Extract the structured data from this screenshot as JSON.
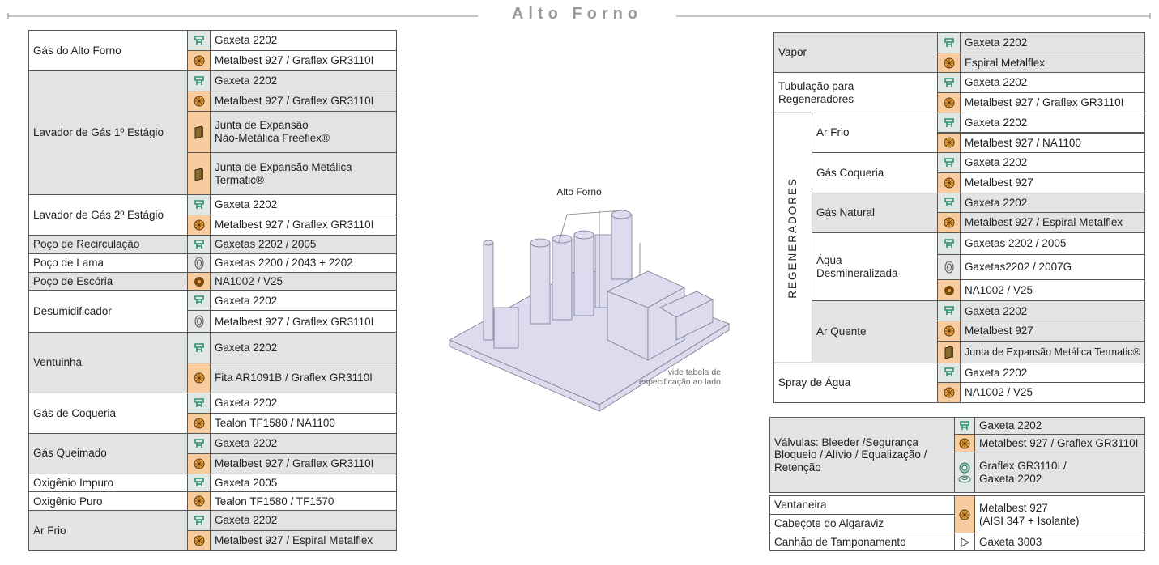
{
  "header": {
    "title": "Alto Forno"
  },
  "illustration": {
    "label": "Alto Forno",
    "caption": "vide tabela de\nespecificação ao lado"
  },
  "left_table": {
    "groups": [
      {
        "label": "Gás do Alto Forno",
        "items": [
          "Gaxeta 2202",
          "Metalbest 927 / Graflex GR3110I"
        ]
      },
      {
        "label": "Lavador de Gás 1º Estágio",
        "items": [
          "Gaxeta 2202",
          "Metalbest 927 / Graflex GR3110I",
          "Junta de Expansão\nNão-Metálica Freeflex®",
          "Junta de Expansão Metálica\nTermatic®"
        ]
      },
      {
        "label": "Lavador de Gás 2º Estágio",
        "items": [
          "Gaxeta 2202",
          "Metalbest 927 / Graflex GR3110I"
        ]
      },
      {
        "label": "Poço de Recirculação",
        "items": [
          "Gaxetas 2202 / 2005"
        ]
      },
      {
        "label": "Poço de Lama",
        "items": [
          "Gaxetas 2200 / 2043 + 2202"
        ]
      },
      {
        "label": "Poço de Escória",
        "items": [
          "NA1002 / V25"
        ]
      },
      {
        "label": "Desumidificador",
        "items": [
          "Gaxeta 2202",
          "Metalbest 927 / Graflex GR3110I"
        ]
      },
      {
        "label": "Ventuinha",
        "items": [
          "Gaxeta 2202",
          "Fita AR1091B / Graflex GR3110I"
        ]
      },
      {
        "label": "Gás de Coqueria",
        "items": [
          "Gaxeta 2202",
          "Tealon TF1580 / NA1100"
        ]
      },
      {
        "label": "Gás Queimado",
        "items": [
          "Gaxeta 2202",
          "Metalbest 927 / Graflex GR3110I"
        ]
      },
      {
        "label": "Oxigênio Impuro",
        "items": [
          "Gaxeta 2005"
        ]
      },
      {
        "label": "Oxigênio Puro",
        "items": [
          "Tealon TF1580 / TF1570"
        ]
      },
      {
        "label": "Ar Frio",
        "items": [
          "Gaxeta 2202",
          "Metalbest 927 / Espiral Metalflex"
        ]
      }
    ]
  },
  "right_table": {
    "groups": [
      {
        "label": "Vapor",
        "items": [
          "Gaxeta 2202",
          "Espiral Metalflex"
        ]
      },
      {
        "label": "Tubulação para\nRegeneradores",
        "items": [
          "Gaxeta 2202",
          "Metalbest 927 / Graflex GR3110I"
        ]
      },
      {
        "label": "REGENERADORES",
        "subgroups": [
          {
            "label": "Ar Frio",
            "items": [
              "Gaxeta 2202",
              "Metalbest 927 / NA1100"
            ]
          },
          {
            "label": "Gás Coqueria",
            "items": [
              "Gaxeta 2202",
              "Metalbest 927"
            ]
          },
          {
            "label": "Gás Natural",
            "items": [
              "Gaxeta 2202",
              "Metalbest 927 / Espiral Metalflex"
            ]
          },
          {
            "label": "Água\nDesmineralizada",
            "items": [
              "Gaxetas 2202 / 2005",
              "Gaxetas2202 / 2007G",
              "NA1002 / V25"
            ]
          },
          {
            "label": "Ar Quente",
            "items": [
              "Gaxeta 2202",
              "Metalbest 927",
              "Junta de Expansão Metálica Termatic®"
            ]
          }
        ]
      },
      {
        "label": "Spray de Água",
        "items": [
          "Gaxeta 2202",
          "NA1002 / V25"
        ]
      }
    ]
  },
  "valves_table": {
    "rows": [
      {
        "label": "Válvulas: Bleeder /Segurança\nBloqueio / Alívio / Equalização /\nRetenção",
        "items": [
          "Gaxeta 2202",
          "Metalbest 927 / Graflex GR3110I",
          "Graflex GR3110I /\nGaxeta 2202"
        ]
      },
      {
        "labels": [
          "Ventaneira",
          "Cabeçote do Algaraviz"
        ],
        "items": [
          "Metalbest 927\n(AISI 347 + Isolante)"
        ]
      },
      {
        "label": "Canhão de Tamponamento",
        "items": [
          "Gaxeta 3003"
        ]
      }
    ]
  }
}
